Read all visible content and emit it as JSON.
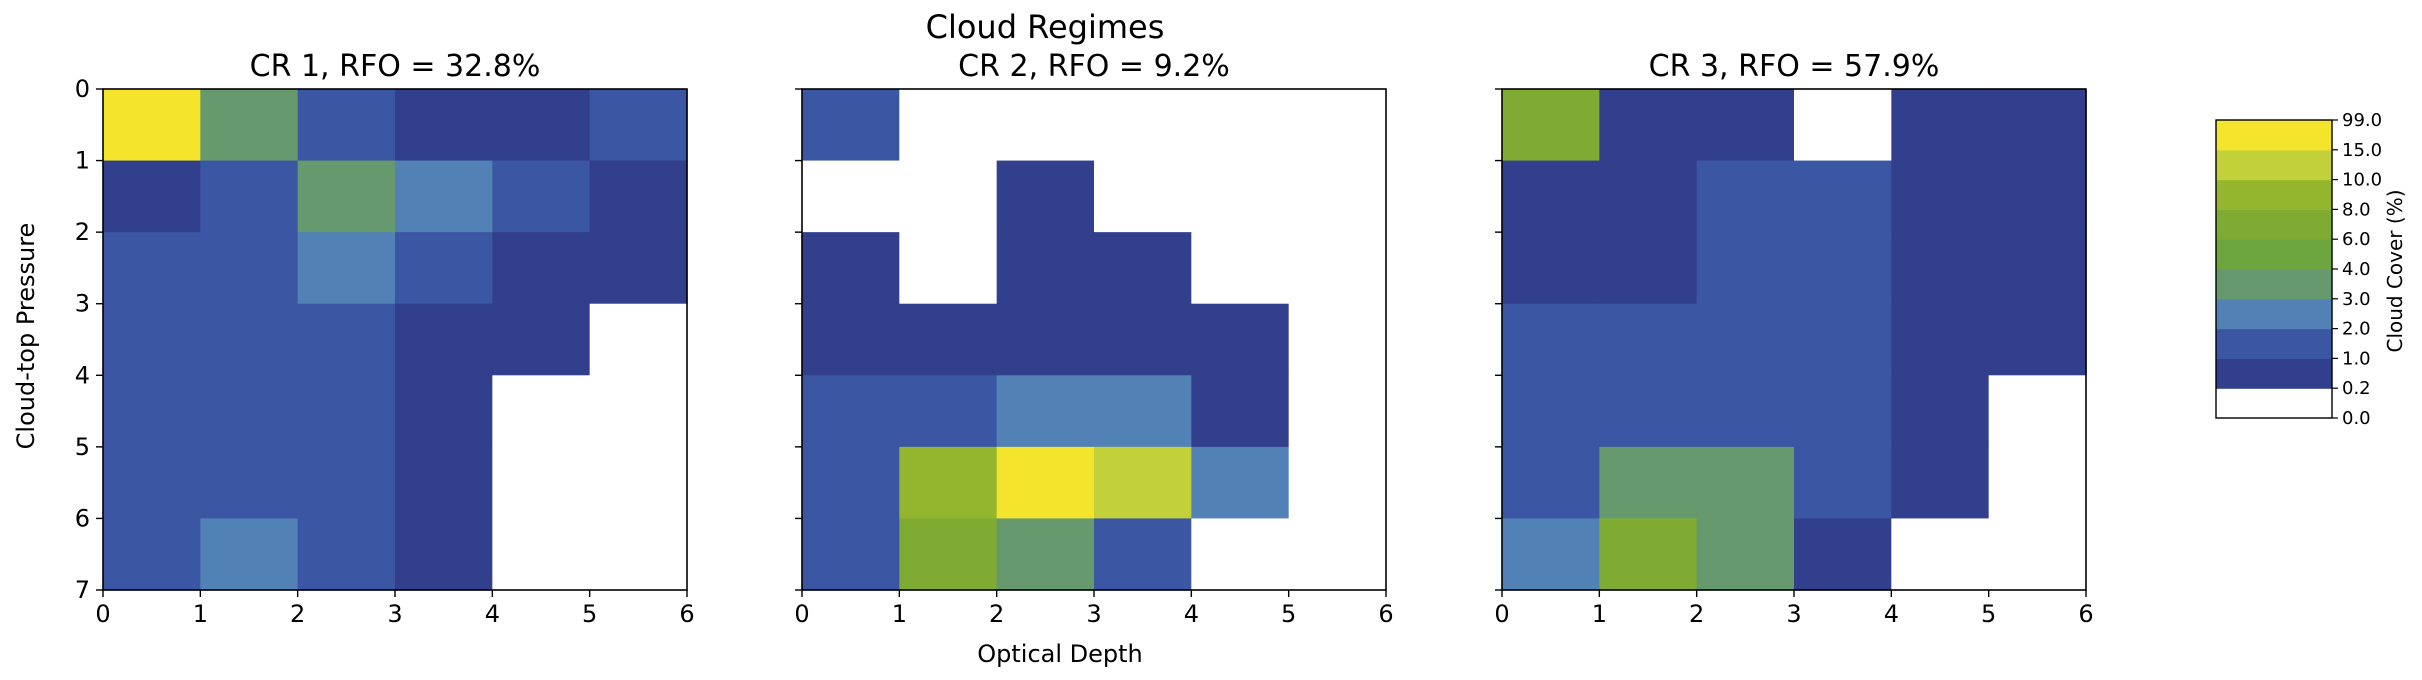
{
  "chart_data": {
    "type": "heatmap",
    "title": "Cloud Regimes",
    "xlabel": "Optical Depth",
    "ylabel": "Cloud-top Pressure",
    "xlim": [
      0,
      6
    ],
    "ylim": [
      7,
      0
    ],
    "x_ticks": [
      "0",
      "1",
      "2",
      "3",
      "4",
      "5",
      "6"
    ],
    "y_ticks": [
      "0",
      "1",
      "2",
      "3",
      "4",
      "5",
      "6",
      "7"
    ],
    "colorbar": {
      "label": "Cloud Cover (%)",
      "bounds": [
        "0.0",
        "0.2",
        "1.0",
        "2.0",
        "3.0",
        "4.0",
        "6.0",
        "8.0",
        "10.0",
        "15.0",
        "99.0"
      ],
      "colors": [
        "#ffffff",
        "#323f8d",
        "#3b56a2",
        "#5281b5",
        "#66996e",
        "#6da53e",
        "#7fab32",
        "#93b62e",
        "#c2d139",
        "#f4e52c"
      ]
    },
    "panels": [
      {
        "title": "CR 1, RFO = 32.8%",
        "values": [
          [
            9,
            4,
            2,
            1,
            1,
            2
          ],
          [
            1,
            2,
            4,
            3,
            2,
            1
          ],
          [
            2,
            2,
            3,
            2,
            1,
            1
          ],
          [
            2,
            2,
            2,
            1,
            1,
            0
          ],
          [
            2,
            2,
            2,
            1,
            0,
            0
          ],
          [
            2,
            2,
            2,
            1,
            0,
            0
          ],
          [
            2,
            3,
            2,
            1,
            0,
            0
          ]
        ]
      },
      {
        "title": "CR 2, RFO = 9.2%",
        "values": [
          [
            2,
            0,
            0,
            0,
            0,
            0
          ],
          [
            0,
            0,
            1,
            0,
            0,
            0
          ],
          [
            1,
            0,
            1,
            1,
            0,
            0
          ],
          [
            1,
            1,
            1,
            1,
            1,
            0
          ],
          [
            2,
            2,
            3,
            3,
            1,
            0
          ],
          [
            2,
            7,
            9,
            8,
            3,
            0
          ],
          [
            2,
            6,
            4,
            2,
            0,
            0
          ]
        ]
      },
      {
        "title": "CR 3, RFO = 57.9%",
        "values": [
          [
            6,
            1,
            1,
            0,
            1,
            1
          ],
          [
            1,
            1,
            2,
            2,
            1,
            1
          ],
          [
            1,
            1,
            2,
            2,
            1,
            1
          ],
          [
            2,
            2,
            2,
            2,
            1,
            1
          ],
          [
            2,
            2,
            2,
            2,
            1,
            0
          ],
          [
            2,
            4,
            4,
            2,
            1,
            0
          ],
          [
            3,
            6,
            4,
            1,
            0,
            0
          ]
        ]
      }
    ]
  }
}
